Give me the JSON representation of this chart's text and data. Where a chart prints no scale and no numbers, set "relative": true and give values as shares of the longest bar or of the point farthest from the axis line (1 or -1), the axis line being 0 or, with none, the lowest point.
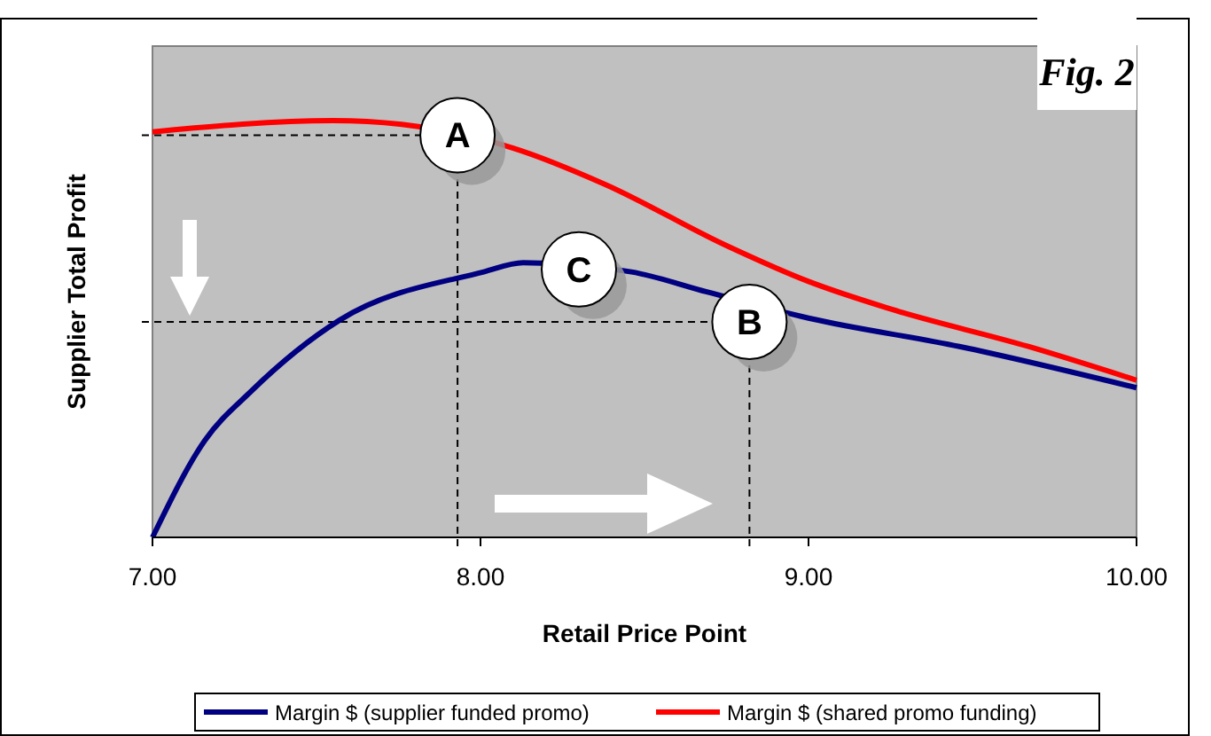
{
  "chart_data": {
    "type": "line",
    "title": "Fig. 2",
    "xlabel": "Retail Price Point",
    "ylabel": "Supplier Total Profit",
    "relative": true,
    "xlim": [
      7,
      10
    ],
    "xticks": [
      {
        "value": 7,
        "label": "7.00"
      },
      {
        "value": 8,
        "label": "8.00"
      },
      {
        "value": 9,
        "label": "9.00"
      },
      {
        "value": 10,
        "label": "10.00"
      }
    ],
    "legend": "bottom",
    "grid": false,
    "marker": "none",
    "line_style": "solid",
    "series": [
      {
        "name": "Margin $ (supplier funded promo)",
        "color": "#000080",
        "x": [
          7.0,
          7.16,
          7.3,
          7.57,
          8.01,
          8.13,
          8.46,
          8.69,
          9.0,
          9.46,
          10.0
        ],
        "values": [
          0,
          0.233,
          0.35,
          0.521,
          0.637,
          0.659,
          0.637,
          0.589,
          0.526,
          0.458,
          0.359
        ]
      },
      {
        "name": "Margin $ (shared promo funding)",
        "color": "#ff0000",
        "x": [
          7.0,
          7.55,
          7.76,
          8.1,
          8.38,
          8.75,
          9.0,
          9.25,
          9.67,
          10.0
        ],
        "values": [
          0.973,
          1,
          0.991,
          0.934,
          0.847,
          0.7,
          0.614,
          0.548,
          0.458,
          0.377
        ]
      }
    ],
    "ref_lines": [
      {
        "axis": "x",
        "value": 7.93,
        "color": "#000000",
        "line_style": "dashed"
      },
      {
        "axis": "x",
        "value": 8.82,
        "color": "#000000",
        "line_style": "dashed"
      },
      {
        "axis": "y",
        "value": 0.965,
        "color": "#000000",
        "line_style": "dashed"
      },
      {
        "axis": "y",
        "value": 0.517,
        "color": "#000000",
        "line_style": "dashed"
      }
    ],
    "annotations": [
      {
        "text": "A",
        "x": 7.93,
        "y": 0.965
      },
      {
        "text": "B",
        "x": 8.82,
        "y": 0.517
      },
      "C"
    ]
  }
}
